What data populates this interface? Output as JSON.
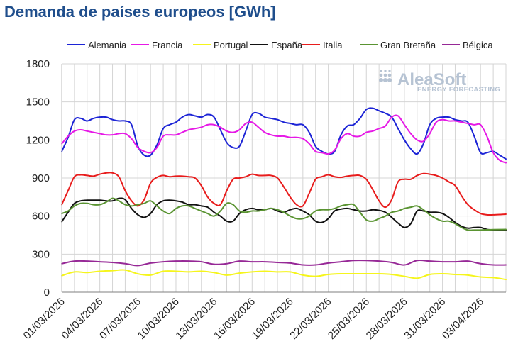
{
  "chart_data": {
    "type": "line",
    "title": "Demanda de países europeos [GWh]",
    "xlabel": "",
    "ylabel": "",
    "ylim": [
      0,
      1800
    ],
    "yticks": [
      0,
      300,
      600,
      900,
      1200,
      1500,
      1800
    ],
    "grid": true,
    "legend_position": "top",
    "x_tick_labels": [
      "01/03/2026",
      "04/03/2026",
      "07/03/2026",
      "10/03/2026",
      "13/03/2026",
      "16/03/2026",
      "19/03/2026",
      "22/03/2026",
      "25/03/2026",
      "28/03/2026",
      "31/03/2026",
      "03/04/2026"
    ],
    "x_tick_day_index": [
      0,
      3,
      6,
      9,
      12,
      15,
      18,
      21,
      24,
      27,
      30,
      33
    ],
    "x_day_range": [
      0,
      35
    ],
    "watermark": {
      "brand": "AleaSoft",
      "sub": "ENERGY FORECASTING",
      "logo_icon": "dot-grid-icon"
    },
    "series": [
      {
        "name": "Alemania",
        "color": "#1c24d6",
        "x": [
          0,
          0.5,
          1,
          1.5,
          2,
          2.5,
          3,
          3.5,
          4,
          4.5,
          5,
          5.5,
          6,
          6.5,
          7,
          7.5,
          8,
          8.5,
          9,
          9.5,
          10,
          10.5,
          11,
          11.5,
          12,
          12.5,
          13,
          13.5,
          14,
          14.5,
          15,
          15.5,
          16,
          16.5,
          17,
          17.5,
          18,
          18.5,
          19,
          19.5,
          20,
          20.5,
          21,
          21.5,
          22,
          22.5,
          23,
          23.5,
          24,
          24.5,
          25,
          25.5,
          26,
          26.5,
          27,
          27.5,
          28,
          28.5,
          29,
          29.5,
          30,
          30.5,
          31,
          31.5,
          32,
          32.5,
          33,
          33.5,
          34,
          34.5,
          35
        ],
        "values": [
          1110,
          1220,
          1360,
          1370,
          1350,
          1370,
          1380,
          1380,
          1360,
          1350,
          1350,
          1320,
          1150,
          1080,
          1080,
          1160,
          1290,
          1320,
          1340,
          1380,
          1400,
          1390,
          1380,
          1400,
          1380,
          1280,
          1180,
          1140,
          1150,
          1270,
          1400,
          1410,
          1380,
          1370,
          1360,
          1340,
          1330,
          1320,
          1320,
          1260,
          1150,
          1110,
          1090,
          1110,
          1240,
          1310,
          1320,
          1370,
          1440,
          1450,
          1430,
          1410,
          1380,
          1290,
          1200,
          1130,
          1090,
          1170,
          1320,
          1370,
          1380,
          1380,
          1360,
          1350,
          1340,
          1230,
          1100,
          1100,
          1110,
          1080,
          1050
        ]
      },
      {
        "name": "Francia",
        "color": "#e619e6",
        "x": [
          0,
          0.5,
          1,
          1.5,
          2,
          2.5,
          3,
          3.5,
          4,
          4.5,
          5,
          5.5,
          6,
          6.5,
          7,
          7.5,
          8,
          8.5,
          9,
          9.5,
          10,
          10.5,
          11,
          11.5,
          12,
          12.5,
          13,
          13.5,
          14,
          14.5,
          15,
          15.5,
          16,
          16.5,
          17,
          17.5,
          18,
          18.5,
          19,
          19.5,
          20,
          20.5,
          21,
          21.5,
          22,
          22.5,
          23,
          23.5,
          24,
          24.5,
          25,
          25.5,
          26,
          26.5,
          27,
          27.5,
          28,
          28.5,
          29,
          29.5,
          30,
          30.5,
          31,
          31.5,
          32,
          32.5,
          33,
          33.5,
          34,
          34.5,
          35
        ],
        "values": [
          1170,
          1230,
          1270,
          1280,
          1270,
          1260,
          1250,
          1240,
          1240,
          1250,
          1250,
          1210,
          1140,
          1110,
          1100,
          1140,
          1230,
          1240,
          1240,
          1260,
          1280,
          1290,
          1300,
          1320,
          1320,
          1300,
          1270,
          1260,
          1280,
          1330,
          1340,
          1300,
          1260,
          1240,
          1230,
          1230,
          1220,
          1220,
          1210,
          1170,
          1110,
          1100,
          1090,
          1120,
          1210,
          1250,
          1230,
          1230,
          1260,
          1270,
          1290,
          1310,
          1380,
          1390,
          1320,
          1250,
          1200,
          1190,
          1250,
          1340,
          1360,
          1350,
          1350,
          1340,
          1330,
          1320,
          1320,
          1230,
          1100,
          1040,
          1020
        ]
      },
      {
        "name": "Portugal",
        "color": "#f5f51c",
        "x": [
          0,
          1,
          2,
          3,
          4,
          5,
          6,
          7,
          8,
          9,
          10,
          11,
          12,
          13,
          14,
          15,
          16,
          17,
          18,
          19,
          20,
          21,
          22,
          23,
          24,
          25,
          26,
          27,
          28,
          29,
          30,
          31,
          32,
          33,
          34,
          35
        ],
        "values": [
          130,
          160,
          155,
          165,
          170,
          175,
          145,
          135,
          165,
          165,
          160,
          165,
          155,
          135,
          150,
          160,
          165,
          160,
          160,
          135,
          125,
          140,
          145,
          145,
          145,
          145,
          140,
          125,
          110,
          140,
          145,
          140,
          135,
          120,
          115,
          100
        ]
      },
      {
        "name": "España",
        "color": "#111111",
        "x": [
          0,
          0.5,
          1,
          1.5,
          2,
          2.5,
          3,
          3.5,
          4,
          4.5,
          5,
          5.5,
          6,
          6.5,
          7,
          7.5,
          8,
          8.5,
          9,
          9.5,
          10,
          10.5,
          11,
          11.5,
          12,
          12.5,
          13,
          13.5,
          14,
          14.5,
          15,
          15.5,
          16,
          16.5,
          17,
          17.5,
          18,
          18.5,
          19,
          19.5,
          20,
          20.5,
          21,
          21.5,
          22,
          22.5,
          23,
          23.5,
          24,
          24.5,
          25,
          25.5,
          26,
          26.5,
          27,
          27.5,
          28,
          28.5,
          29,
          29.5,
          30,
          30.5,
          31,
          31.5,
          32,
          32.5,
          33,
          33.5,
          34,
          34.5,
          35
        ],
        "values": [
          555,
          630,
          700,
          720,
          725,
          725,
          725,
          720,
          720,
          740,
          730,
          660,
          610,
          590,
          620,
          690,
          720,
          725,
          720,
          710,
          690,
          690,
          680,
          670,
          630,
          600,
          560,
          560,
          620,
          650,
          660,
          650,
          650,
          660,
          640,
          630,
          650,
          660,
          640,
          610,
          560,
          550,
          580,
          640,
          655,
          660,
          650,
          640,
          640,
          650,
          645,
          630,
          590,
          545,
          510,
          540,
          640,
          640,
          630,
          630,
          620,
          590,
          550,
          520,
          505,
          510,
          510,
          495,
          490,
          488,
          490
        ]
      },
      {
        "name": "Italia",
        "color": "#e81c1c",
        "x": [
          0,
          0.5,
          1,
          1.5,
          2,
          2.5,
          3,
          3.5,
          4,
          4.5,
          5,
          5.5,
          6,
          6.5,
          7,
          7.5,
          8,
          8.5,
          9,
          9.5,
          10,
          10.5,
          11,
          11.5,
          12,
          12.5,
          13,
          13.5,
          14,
          14.5,
          15,
          15.5,
          16,
          16.5,
          17,
          17.5,
          18,
          18.5,
          19,
          19.5,
          20,
          20.5,
          21,
          21.5,
          22,
          22.5,
          23,
          23.5,
          24,
          24.5,
          25,
          25.5,
          26,
          26.5,
          27,
          27.5,
          28,
          28.5,
          29,
          29.5,
          30,
          30.5,
          31,
          31.5,
          32,
          32.5,
          33,
          33.5,
          34,
          34.5,
          35
        ],
        "values": [
          690,
          800,
          910,
          925,
          920,
          915,
          930,
          940,
          940,
          910,
          800,
          720,
          680,
          730,
          860,
          905,
          920,
          910,
          915,
          915,
          910,
          900,
          840,
          750,
          700,
          690,
          800,
          890,
          900,
          910,
          930,
          920,
          920,
          920,
          900,
          830,
          750,
          690,
          680,
          780,
          890,
          910,
          925,
          910,
          905,
          915,
          920,
          920,
          890,
          810,
          720,
          670,
          730,
          870,
          890,
          890,
          920,
          935,
          930,
          920,
          900,
          870,
          840,
          760,
          690,
          650,
          620,
          610,
          610,
          612,
          615
        ]
      },
      {
        "name": "Gran Bretaña",
        "color": "#5a9432",
        "x": [
          0,
          0.5,
          1,
          1.5,
          2,
          2.5,
          3,
          3.5,
          4,
          4.5,
          5,
          5.5,
          6,
          6.5,
          7,
          7.5,
          8,
          8.5,
          9,
          9.5,
          10,
          10.5,
          11,
          11.5,
          12,
          12.5,
          13,
          13.5,
          14,
          14.5,
          15,
          15.5,
          16,
          16.5,
          17,
          17.5,
          18,
          18.5,
          19,
          19.5,
          20,
          20.5,
          21,
          21.5,
          22,
          22.5,
          23,
          23.5,
          24,
          24.5,
          25,
          25.5,
          26,
          26.5,
          27,
          27.5,
          28,
          28.5,
          29,
          29.5,
          30,
          30.5,
          31,
          31.5,
          32,
          32.5,
          33,
          33.5,
          34,
          34.5,
          35
        ],
        "values": [
          620,
          640,
          680,
          700,
          700,
          690,
          690,
          710,
          740,
          720,
          690,
          680,
          690,
          700,
          720,
          680,
          640,
          620,
          660,
          680,
          680,
          660,
          640,
          620,
          600,
          640,
          700,
          690,
          640,
          630,
          640,
          640,
          650,
          660,
          650,
          630,
          600,
          580,
          580,
          600,
          640,
          650,
          650,
          660,
          680,
          690,
          690,
          630,
          570,
          560,
          580,
          600,
          630,
          640,
          660,
          670,
          680,
          650,
          610,
          580,
          560,
          560,
          540,
          510,
          490,
          490,
          490,
          492,
          493,
          494,
          495
        ]
      },
      {
        "name": "Bélgica",
        "color": "#962896",
        "x": [
          0,
          1,
          2,
          3,
          4,
          5,
          6,
          7,
          8,
          9,
          10,
          11,
          12,
          13,
          14,
          15,
          16,
          17,
          18,
          19,
          20,
          21,
          22,
          23,
          24,
          25,
          26,
          27,
          28,
          29,
          30,
          31,
          32,
          33,
          34,
          35
        ],
        "values": [
          225,
          245,
          245,
          240,
          235,
          225,
          210,
          230,
          240,
          245,
          245,
          240,
          220,
          225,
          245,
          240,
          240,
          235,
          230,
          215,
          215,
          230,
          240,
          250,
          250,
          245,
          235,
          215,
          250,
          245,
          240,
          240,
          245,
          225,
          215,
          215
        ]
      }
    ]
  }
}
